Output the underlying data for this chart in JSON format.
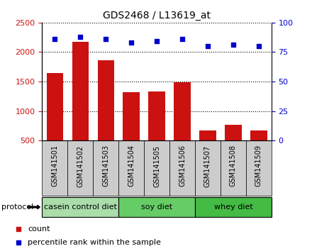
{
  "title": "GDS2468 / L13619_at",
  "samples": [
    "GSM141501",
    "GSM141502",
    "GSM141503",
    "GSM141504",
    "GSM141505",
    "GSM141506",
    "GSM141507",
    "GSM141508",
    "GSM141509"
  ],
  "counts": [
    1650,
    2170,
    1860,
    1320,
    1330,
    1490,
    670,
    770,
    670
  ],
  "percentile_ranks": [
    86,
    88,
    86,
    83,
    84,
    86,
    80,
    81,
    80
  ],
  "ylim_left": [
    500,
    2500
  ],
  "ylim_right": [
    0,
    100
  ],
  "yticks_left": [
    500,
    1000,
    1500,
    2000,
    2500
  ],
  "yticks_right": [
    0,
    25,
    50,
    75,
    100
  ],
  "bar_color": "#cc1111",
  "dot_color": "#0000cc",
  "bar_width": 0.65,
  "groups": [
    {
      "label": "casein control diet",
      "start": 0,
      "end": 3,
      "color": "#aaddaa"
    },
    {
      "label": "soy diet",
      "start": 3,
      "end": 6,
      "color": "#66cc66"
    },
    {
      "label": "whey diet",
      "start": 6,
      "end": 9,
      "color": "#44bb44"
    }
  ],
  "protocol_label": "protocol",
  "legend_count_label": "count",
  "legend_percentile_label": "percentile rank within the sample",
  "tick_label_color_left": "#cc1111",
  "tick_label_color_right": "#0000cc",
  "bg_color": "#ffffff",
  "xticklabel_bg": "#cccccc"
}
